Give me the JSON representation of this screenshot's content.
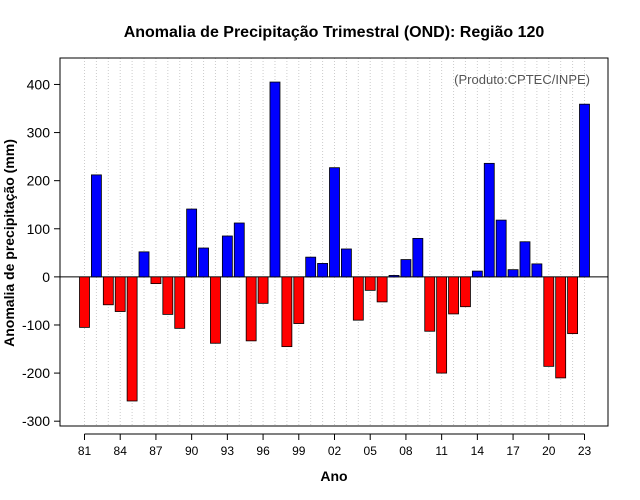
{
  "chart_data": {
    "type": "bar",
    "title": "Anomalia de Precipitação Trimestral (OND): Região 120",
    "xlabel": "Ano",
    "ylabel": "Anomalia de precipitação (mm)",
    "annotation": "(Produto:CPTEC/INPE)",
    "ylim": [
      -310,
      455
    ],
    "yticks": [
      -300,
      -200,
      -100,
      0,
      100,
      200,
      300,
      400
    ],
    "grid": "vertical dotted",
    "positive_color": "#0000ff",
    "negative_color": "#ff0000",
    "categories": [
      "1981",
      "1982",
      "1983",
      "1984",
      "1985",
      "1986",
      "1987",
      "1988",
      "1989",
      "1990",
      "1991",
      "1992",
      "1993",
      "1994",
      "1995",
      "1996",
      "1997",
      "1998",
      "1999",
      "2000",
      "2001",
      "2002",
      "2003",
      "2004",
      "2005",
      "2006",
      "2007",
      "2008",
      "2009",
      "2010",
      "2011",
      "2012",
      "2013",
      "2014",
      "2015",
      "2016",
      "2017",
      "2018",
      "2019",
      "2020",
      "2021",
      "2022",
      "2023"
    ],
    "xtick_labels": [
      "81",
      "84",
      "87",
      "90",
      "93",
      "96",
      "99",
      "02",
      "05",
      "08",
      "11",
      "14",
      "17",
      "20",
      "23"
    ],
    "xtick_indices": [
      0,
      3,
      6,
      9,
      12,
      15,
      18,
      21,
      24,
      27,
      30,
      33,
      36,
      39,
      42
    ],
    "values": [
      -105,
      212,
      -58,
      -72,
      -258,
      52,
      -14,
      -78,
      -107,
      141,
      60,
      -138,
      85,
      112,
      -133,
      -55,
      405,
      -145,
      -97,
      41,
      28,
      227,
      58,
      -90,
      -28,
      -52,
      3,
      36,
      80,
      -113,
      -200,
      -77,
      -62,
      12,
      236,
      118,
      15,
      73,
      27,
      -186,
      -210,
      -118,
      359
    ]
  }
}
